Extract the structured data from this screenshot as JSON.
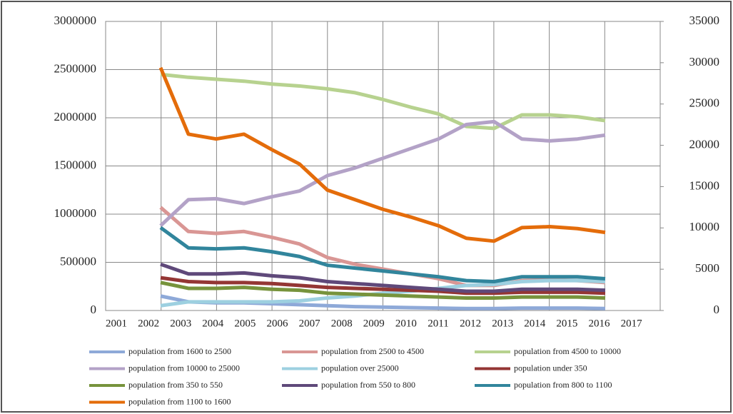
{
  "chart_data": {
    "type": "line",
    "categories": [
      "2001",
      "2002",
      "2003",
      "2004",
      "2005",
      "2006",
      "2007",
      "2008",
      "2009",
      "2010",
      "2011",
      "2012",
      "2013",
      "2014",
      "2015",
      "2016",
      "2017"
    ],
    "ylim": [
      0,
      3000000
    ],
    "yticks": [
      0,
      500000,
      1000000,
      1500000,
      2000000,
      2500000,
      3000000
    ],
    "y2lim": [
      0,
      35000
    ],
    "y2ticks": [
      0,
      5000,
      10000,
      15000,
      20000,
      25000,
      30000,
      35000
    ],
    "grid": true,
    "series": [
      {
        "name": "population from 1600 to 2500",
        "color": "#8ea9d8",
        "values": [
          150000,
          90000,
          80000,
          80000,
          70000,
          60000,
          50000,
          40000,
          35000,
          30000,
          25000,
          20000,
          20000,
          25000,
          25000,
          25000,
          20000
        ]
      },
      {
        "name": "population from 2500 to 4500",
        "color": "#d99694",
        "values": [
          1070000,
          820000,
          800000,
          820000,
          760000,
          690000,
          550000,
          480000,
          430000,
          380000,
          330000,
          260000,
          260000,
          310000,
          320000,
          310000,
          290000
        ]
      },
      {
        "name": "population from 4500 to 10000",
        "color": "#b7d28f",
        "values": [
          2450000,
          2420000,
          2400000,
          2380000,
          2350000,
          2330000,
          2300000,
          2260000,
          2190000,
          2110000,
          2040000,
          1910000,
          1890000,
          2030000,
          2030000,
          2010000,
          1970000
        ]
      },
      {
        "name": "population from 10000 to 25000",
        "color": "#b3a2c7",
        "values": [
          880000,
          1150000,
          1160000,
          1110000,
          1180000,
          1240000,
          1400000,
          1480000,
          1580000,
          1680000,
          1780000,
          1930000,
          1960000,
          1780000,
          1760000,
          1780000,
          1820000
        ]
      },
      {
        "name": "population over 25000",
        "color": "#9dd0e0",
        "values": [
          50000,
          90000,
          90000,
          90000,
          90000,
          100000,
          130000,
          150000,
          180000,
          200000,
          230000,
          260000,
          270000,
          300000,
          310000,
          310000,
          300000
        ]
      },
      {
        "name": "population under 350",
        "color": "#943634",
        "values": [
          340000,
          300000,
          290000,
          290000,
          280000,
          260000,
          240000,
          230000,
          220000,
          210000,
          200000,
          180000,
          180000,
          190000,
          190000,
          190000,
          180000
        ]
      },
      {
        "name": "population from 350 to 550",
        "color": "#77933c",
        "values": [
          290000,
          230000,
          230000,
          240000,
          220000,
          210000,
          180000,
          170000,
          160000,
          150000,
          140000,
          130000,
          130000,
          140000,
          140000,
          140000,
          130000
        ]
      },
      {
        "name": "population from 550 to 800",
        "color": "#5f497a",
        "values": [
          480000,
          380000,
          380000,
          390000,
          360000,
          340000,
          300000,
          280000,
          260000,
          240000,
          220000,
          200000,
          200000,
          220000,
          220000,
          220000,
          210000
        ]
      },
      {
        "name": "population from 800 to 1100",
        "color": "#31859c",
        "values": [
          860000,
          650000,
          640000,
          650000,
          610000,
          560000,
          470000,
          440000,
          410000,
          380000,
          350000,
          310000,
          300000,
          350000,
          350000,
          350000,
          330000
        ]
      },
      {
        "name": "population from 1100 to 1600",
        "color": "#e46c0a",
        "values": [
          2520000,
          1830000,
          1780000,
          1830000,
          1670000,
          1520000,
          1250000,
          1150000,
          1050000,
          970000,
          880000,
          750000,
          720000,
          860000,
          870000,
          850000,
          810000
        ]
      }
    ]
  }
}
